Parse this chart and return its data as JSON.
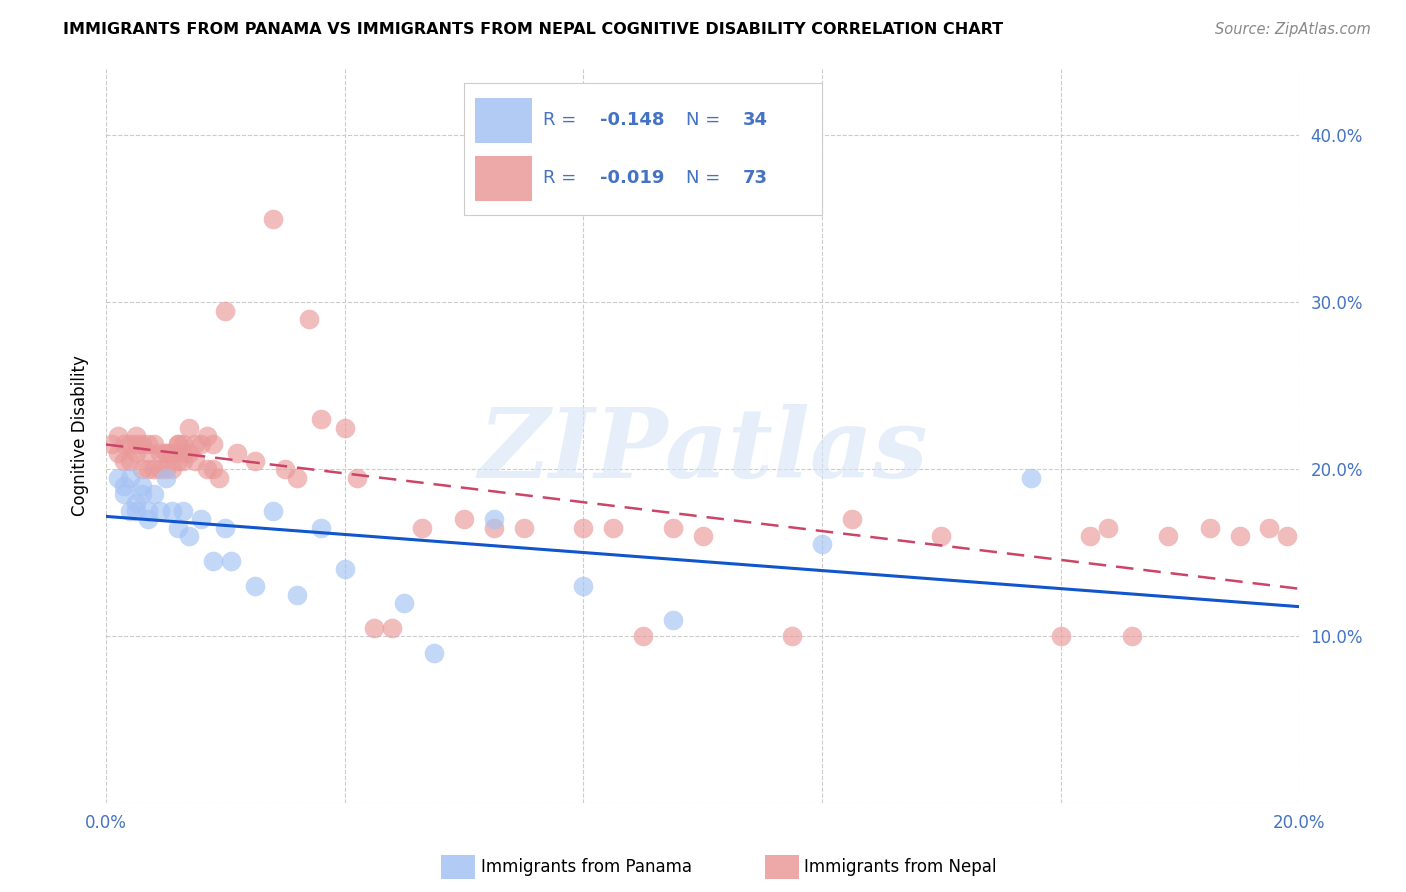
{
  "title": "IMMIGRANTS FROM PANAMA VS IMMIGRANTS FROM NEPAL COGNITIVE DISABILITY CORRELATION CHART",
  "source": "Source: ZipAtlas.com",
  "ylabel": "Cognitive Disability",
  "watermark": "ZIPatlas",
  "xlim": [
    0.0,
    0.2
  ],
  "ylim": [
    0.0,
    0.44
  ],
  "xticks": [
    0.0,
    0.04,
    0.08,
    0.12,
    0.16,
    0.2
  ],
  "yticks": [
    0.0,
    0.1,
    0.2,
    0.3,
    0.4
  ],
  "ytick_labels_right": [
    "",
    "10.0%",
    "20.0%",
    "30.0%",
    "40.0%"
  ],
  "xtick_labels": [
    "0.0%",
    "",
    "",
    "",
    "",
    "20.0%"
  ],
  "legend_text_color": "#4472c4",
  "panama_color": "#a4c2f4",
  "nepal_color": "#ea9999",
  "panama_line_color": "#1155cc",
  "nepal_line_color": "#cc4466",
  "background_color": "#ffffff",
  "tick_color": "#4472c4",
  "panama_scatter_x": [
    0.002,
    0.003,
    0.003,
    0.004,
    0.004,
    0.005,
    0.005,
    0.006,
    0.006,
    0.007,
    0.007,
    0.008,
    0.009,
    0.01,
    0.011,
    0.012,
    0.013,
    0.014,
    0.016,
    0.018,
    0.02,
    0.021,
    0.025,
    0.028,
    0.032,
    0.036,
    0.04,
    0.05,
    0.055,
    0.065,
    0.08,
    0.095,
    0.12,
    0.155
  ],
  "panama_scatter_y": [
    0.195,
    0.19,
    0.185,
    0.175,
    0.195,
    0.18,
    0.175,
    0.19,
    0.185,
    0.175,
    0.17,
    0.185,
    0.175,
    0.195,
    0.175,
    0.165,
    0.175,
    0.16,
    0.17,
    0.145,
    0.165,
    0.145,
    0.13,
    0.175,
    0.125,
    0.165,
    0.14,
    0.12,
    0.09,
    0.17,
    0.13,
    0.11,
    0.155,
    0.195
  ],
  "nepal_scatter_x": [
    0.001,
    0.002,
    0.002,
    0.003,
    0.003,
    0.004,
    0.004,
    0.005,
    0.005,
    0.005,
    0.006,
    0.006,
    0.007,
    0.007,
    0.007,
    0.008,
    0.008,
    0.009,
    0.009,
    0.01,
    0.01,
    0.01,
    0.011,
    0.011,
    0.012,
    0.012,
    0.012,
    0.013,
    0.013,
    0.013,
    0.014,
    0.014,
    0.015,
    0.015,
    0.016,
    0.017,
    0.017,
    0.018,
    0.018,
    0.019,
    0.02,
    0.022,
    0.025,
    0.028,
    0.03,
    0.032,
    0.034,
    0.036,
    0.04,
    0.042,
    0.045,
    0.048,
    0.053,
    0.06,
    0.065,
    0.07,
    0.08,
    0.085,
    0.09,
    0.095,
    0.1,
    0.115,
    0.125,
    0.14,
    0.16,
    0.165,
    0.168,
    0.172,
    0.178,
    0.185,
    0.19,
    0.195,
    0.198
  ],
  "nepal_scatter_y": [
    0.215,
    0.22,
    0.21,
    0.215,
    0.205,
    0.215,
    0.205,
    0.215,
    0.22,
    0.21,
    0.215,
    0.2,
    0.215,
    0.21,
    0.2,
    0.215,
    0.2,
    0.21,
    0.2,
    0.21,
    0.2,
    0.21,
    0.21,
    0.2,
    0.215,
    0.205,
    0.215,
    0.21,
    0.205,
    0.215,
    0.21,
    0.225,
    0.215,
    0.205,
    0.215,
    0.2,
    0.22,
    0.2,
    0.215,
    0.195,
    0.295,
    0.21,
    0.205,
    0.35,
    0.2,
    0.195,
    0.29,
    0.23,
    0.225,
    0.195,
    0.105,
    0.105,
    0.165,
    0.17,
    0.165,
    0.165,
    0.165,
    0.165,
    0.1,
    0.165,
    0.16,
    0.1,
    0.17,
    0.16,
    0.1,
    0.16,
    0.165,
    0.1,
    0.16,
    0.165,
    0.16,
    0.165,
    0.16
  ]
}
